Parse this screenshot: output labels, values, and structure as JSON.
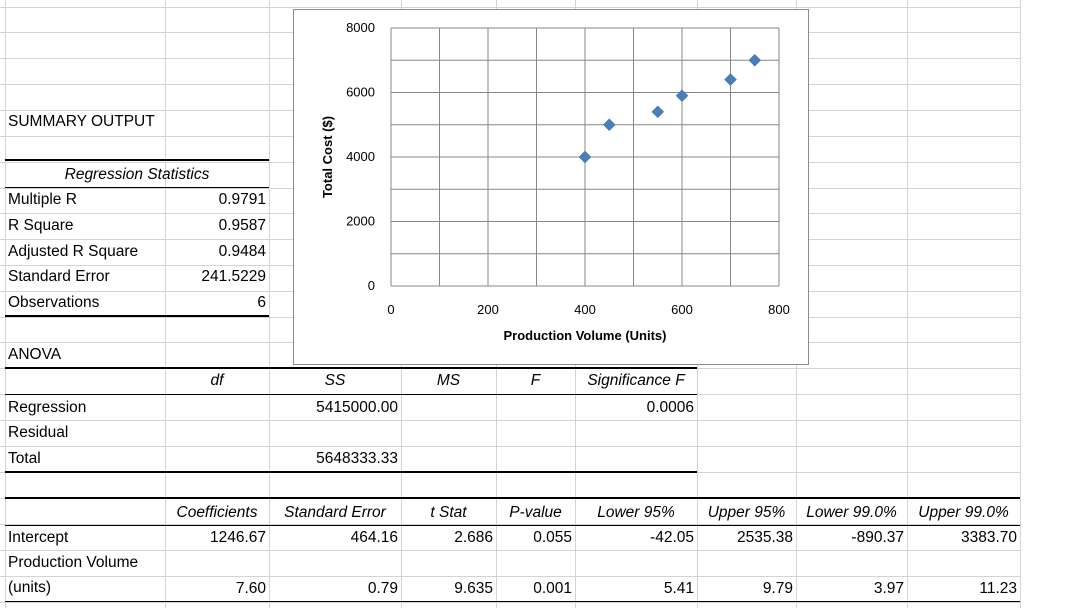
{
  "summary": {
    "title": "SUMMARY OUTPUT",
    "regression_stats_header": "Regression Statistics",
    "stats": [
      {
        "label": "Multiple R",
        "value": "0.9791"
      },
      {
        "label": "R Square",
        "value": "0.9587"
      },
      {
        "label": "Adjusted R Square",
        "value": "0.9484"
      },
      {
        "label": "Standard Error",
        "value": "241.5229"
      },
      {
        "label": "Observations",
        "value": "6"
      }
    ]
  },
  "anova": {
    "title": "ANOVA",
    "headers": [
      "df",
      "SS",
      "MS",
      "F",
      "Significance F"
    ],
    "rows": [
      {
        "label": "Regression",
        "ss": "5415000.00",
        "sigf": "0.0006"
      },
      {
        "label": "Residual"
      },
      {
        "label": "Total",
        "ss": "5648333.33"
      }
    ]
  },
  "coefficients": {
    "headers": [
      "Coefficients",
      "Standard Error",
      "t Stat",
      "P-value",
      "Lower 95%",
      "Upper 95%",
      "Lower 99.0%",
      "Upper 99.0%"
    ],
    "rows": [
      {
        "label": "Intercept",
        "values": [
          "1246.67",
          "464.16",
          "2.686",
          "0.055",
          "-42.05",
          "2535.38",
          "-890.37",
          "3383.70"
        ]
      },
      {
        "label_line1": "Production Volume",
        "label_line2": "(units)",
        "values": [
          "7.60",
          "0.79",
          "9.635",
          "0.001",
          "5.41",
          "9.79",
          "3.97",
          "11.23"
        ]
      }
    ]
  },
  "chart_data": {
    "type": "scatter",
    "xlabel": "Production Volume (Units)",
    "ylabel": "Total Cost ($)",
    "xlim": [
      0,
      800
    ],
    "ylim": [
      0,
      8000
    ],
    "xticks": [
      "0",
      "200",
      "400",
      "600",
      "800"
    ],
    "yticks": [
      "0",
      "2000",
      "4000",
      "6000",
      "8000"
    ],
    "grid": true,
    "marker": "diamond",
    "color": "#4a7ebb",
    "x": [
      400,
      450,
      550,
      600,
      700,
      750
    ],
    "y": [
      4000,
      5000,
      5400,
      5900,
      6400,
      7000
    ]
  }
}
